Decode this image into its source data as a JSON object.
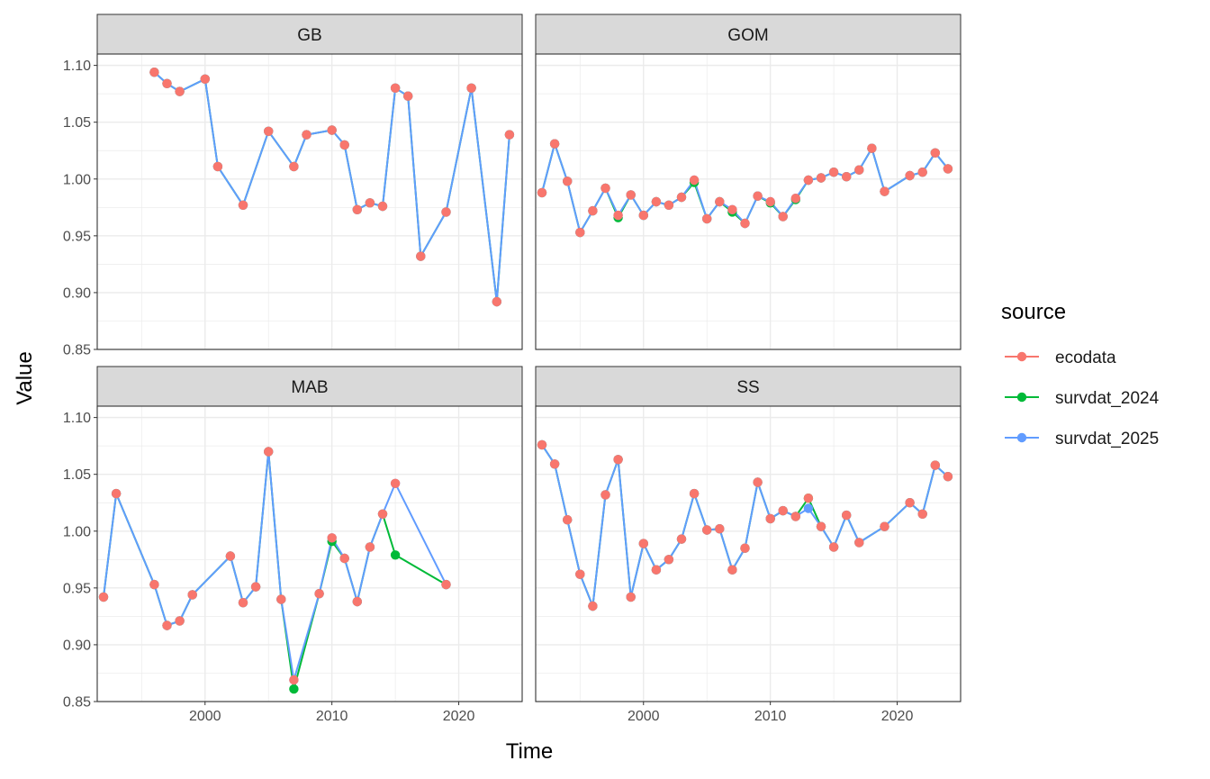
{
  "chart_data": {
    "type": "line",
    "facets": [
      "GB",
      "GOM",
      "MAB",
      "SS"
    ],
    "xlabel": "Time",
    "ylabel": "Value",
    "x_ticks": [
      2000,
      2010,
      2020
    ],
    "y_ticks": [
      0.85,
      0.9,
      0.95,
      1.0,
      1.05,
      1.1
    ],
    "y_tick_labels": [
      "0.85",
      "0.90",
      "0.95",
      "1.00",
      "1.05",
      "1.10"
    ],
    "xlim": [
      1991.5,
      2025
    ],
    "ylim": [
      0.85,
      1.11
    ],
    "grid": true,
    "legend": {
      "title": "source",
      "placement": "right",
      "entries": [
        {
          "name": "ecodata",
          "color": "#F8766D"
        },
        {
          "name": "survdat_2024",
          "color": "#00BA38"
        },
        {
          "name": "survdat_2025",
          "color": "#619CFF"
        }
      ]
    },
    "panels": [
      {
        "facet": "GB",
        "series": [
          {
            "name": "survdat_2024",
            "x": [
              1996,
              1997,
              1998,
              2000,
              2001,
              2003,
              2005,
              2007,
              2008,
              2010,
              2011,
              2012,
              2013,
              2014,
              2015,
              2016,
              2017,
              2019,
              2021,
              2023,
              2024
            ],
            "y": [
              1.094,
              1.084,
              1.077,
              1.088,
              1.011,
              0.977,
              1.042,
              1.011,
              1.039,
              1.043,
              1.03,
              0.973,
              0.979,
              0.976,
              1.08,
              1.073,
              0.932,
              0.971,
              1.08,
              0.892,
              1.039
            ]
          },
          {
            "name": "survdat_2025",
            "x": [
              1996,
              1997,
              1998,
              2000,
              2001,
              2003,
              2005,
              2007,
              2008,
              2010,
              2011,
              2012,
              2013,
              2014,
              2015,
              2016,
              2017,
              2019,
              2021,
              2023,
              2024
            ],
            "y": [
              1.094,
              1.084,
              1.077,
              1.088,
              1.011,
              0.977,
              1.042,
              1.011,
              1.039,
              1.043,
              1.03,
              0.973,
              0.979,
              0.976,
              1.08,
              1.073,
              0.932,
              0.971,
              1.08,
              0.892,
              1.039
            ]
          },
          {
            "name": "ecodata",
            "x": [
              1996,
              1997,
              1998,
              2000,
              2001,
              2003,
              2005,
              2007,
              2008,
              2010,
              2011,
              2012,
              2013,
              2014,
              2015,
              2016,
              2017,
              2019,
              2021,
              2023,
              2024
            ],
            "y": [
              1.094,
              1.084,
              1.077,
              1.088,
              1.011,
              0.977,
              1.042,
              1.011,
              1.039,
              1.043,
              1.03,
              0.973,
              0.979,
              0.976,
              1.08,
              1.073,
              0.932,
              0.971,
              1.08,
              0.892,
              1.039
            ]
          }
        ]
      },
      {
        "facet": "GOM",
        "series": [
          {
            "name": "survdat_2024",
            "x": [
              1992,
              1993,
              1994,
              1995,
              1996,
              1997,
              1998,
              1999,
              2000,
              2001,
              2002,
              2003,
              2004,
              2005,
              2006,
              2007,
              2008,
              2009,
              2010,
              2011,
              2012,
              2013,
              2014,
              2015,
              2016,
              2017,
              2018,
              2019,
              2021,
              2022,
              2023,
              2024
            ],
            "y": [
              0.988,
              1.031,
              0.998,
              0.953,
              0.972,
              0.992,
              0.966,
              0.986,
              0.968,
              0.98,
              0.977,
              0.984,
              0.997,
              0.965,
              0.98,
              0.971,
              0.961,
              0.985,
              0.979,
              0.967,
              0.982,
              0.999,
              1.001,
              1.006,
              1.002,
              1.008,
              1.027,
              0.989,
              1.003,
              1.006,
              1.023,
              1.009
            ]
          },
          {
            "name": "survdat_2025",
            "x": [
              1992,
              1993,
              1994,
              1995,
              1996,
              1997,
              1998,
              1999,
              2000,
              2001,
              2002,
              2003,
              2004,
              2005,
              2006,
              2007,
              2008,
              2009,
              2010,
              2011,
              2012,
              2013,
              2014,
              2015,
              2016,
              2017,
              2018,
              2019,
              2021,
              2022,
              2023,
              2024
            ],
            "y": [
              0.988,
              1.031,
              0.998,
              0.953,
              0.972,
              0.992,
              0.968,
              0.986,
              0.968,
              0.98,
              0.977,
              0.984,
              0.999,
              0.965,
              0.98,
              0.973,
              0.961,
              0.985,
              0.98,
              0.967,
              0.983,
              0.999,
              1.001,
              1.006,
              1.002,
              1.008,
              1.027,
              0.989,
              1.003,
              1.006,
              1.023,
              1.009
            ]
          },
          {
            "name": "ecodata",
            "x": [
              1992,
              1993,
              1994,
              1995,
              1996,
              1997,
              1998,
              1999,
              2000,
              2001,
              2002,
              2003,
              2004,
              2005,
              2006,
              2007,
              2008,
              2009,
              2010,
              2011,
              2012,
              2013,
              2014,
              2015,
              2016,
              2017,
              2018,
              2019,
              2021,
              2022,
              2023,
              2024
            ],
            "y": [
              0.988,
              1.031,
              0.998,
              0.953,
              0.972,
              0.992,
              0.968,
              0.986,
              0.968,
              0.98,
              0.977,
              0.984,
              0.999,
              0.965,
              0.98,
              0.973,
              0.961,
              0.985,
              0.98,
              0.967,
              0.983,
              0.999,
              1.001,
              1.006,
              1.002,
              1.008,
              1.027,
              0.989,
              1.003,
              1.006,
              1.023,
              1.009
            ]
          }
        ]
      },
      {
        "facet": "MAB",
        "series": [
          {
            "name": "survdat_2024",
            "x": [
              1992,
              1993,
              1996,
              1997,
              1998,
              1999,
              2002,
              2003,
              2004,
              2005,
              2006,
              2007,
              2009,
              2010,
              2011,
              2012,
              2013,
              2014,
              2015,
              2019
            ],
            "y": [
              0.942,
              1.033,
              0.953,
              0.917,
              0.921,
              0.944,
              0.978,
              0.937,
              0.951,
              1.07,
              0.94,
              0.861,
              0.945,
              0.991,
              0.976,
              0.938,
              0.986,
              1.015,
              0.979,
              0.953
            ]
          },
          {
            "name": "survdat_2025",
            "x": [
              1992,
              1993,
              1996,
              1997,
              1998,
              1999,
              2002,
              2003,
              2004,
              2005,
              2006,
              2007,
              2009,
              2010,
              2011,
              2012,
              2013,
              2014,
              2015,
              2019
            ],
            "y": [
              0.942,
              1.033,
              0.953,
              0.917,
              0.921,
              0.944,
              0.978,
              0.937,
              0.951,
              1.07,
              0.94,
              0.869,
              0.945,
              0.994,
              0.976,
              0.938,
              0.986,
              1.015,
              1.042,
              0.953
            ]
          },
          {
            "name": "ecodata",
            "x": [
              1992,
              1993,
              1996,
              1997,
              1998,
              1999,
              2002,
              2003,
              2004,
              2005,
              2006,
              2007,
              2009,
              2010,
              2011,
              2012,
              2013,
              2014,
              2015,
              2019
            ],
            "y": [
              0.942,
              1.033,
              0.953,
              0.917,
              0.921,
              0.944,
              0.978,
              0.937,
              0.951,
              1.07,
              0.94,
              0.869,
              0.945,
              0.994,
              0.976,
              0.938,
              0.986,
              1.015,
              1.042,
              0.953
            ]
          }
        ]
      },
      {
        "facet": "SS",
        "series": [
          {
            "name": "survdat_2024",
            "x": [
              1992,
              1993,
              1994,
              1995,
              1996,
              1997,
              1998,
              1999,
              2000,
              2001,
              2002,
              2003,
              2004,
              2005,
              2006,
              2007,
              2008,
              2009,
              2010,
              2011,
              2012,
              2013,
              2014,
              2015,
              2016,
              2017,
              2019,
              2021,
              2022,
              2023,
              2024
            ],
            "y": [
              1.076,
              1.059,
              1.01,
              0.962,
              0.934,
              1.032,
              1.063,
              0.942,
              0.989,
              0.966,
              0.975,
              0.993,
              1.033,
              1.001,
              1.002,
              0.966,
              0.985,
              1.043,
              1.011,
              1.018,
              1.013,
              1.029,
              1.004,
              0.986,
              1.014,
              0.99,
              1.004,
              1.025,
              1.015,
              1.058,
              1.048
            ]
          },
          {
            "name": "survdat_2025",
            "x": [
              1992,
              1993,
              1994,
              1995,
              1996,
              1997,
              1998,
              1999,
              2000,
              2001,
              2002,
              2003,
              2004,
              2005,
              2006,
              2007,
              2008,
              2009,
              2010,
              2011,
              2012,
              2013,
              2014,
              2015,
              2016,
              2017,
              2019,
              2021,
              2022,
              2023,
              2024
            ],
            "y": [
              1.076,
              1.059,
              1.01,
              0.962,
              0.934,
              1.032,
              1.063,
              0.942,
              0.989,
              0.966,
              0.975,
              0.993,
              1.033,
              1.001,
              1.002,
              0.966,
              0.985,
              1.043,
              1.011,
              1.018,
              1.013,
              1.02,
              1.004,
              0.986,
              1.014,
              0.99,
              1.004,
              1.025,
              1.015,
              1.058,
              1.048
            ]
          },
          {
            "name": "ecodata",
            "x": [
              1992,
              1993,
              1994,
              1995,
              1996,
              1997,
              1998,
              1999,
              2000,
              2001,
              2002,
              2003,
              2004,
              2005,
              2006,
              2007,
              2008,
              2009,
              2010,
              2011,
              2012,
              2013,
              2014,
              2015,
              2016,
              2017,
              2019,
              2021,
              2022,
              2023,
              2024
            ],
            "y": [
              1.076,
              1.059,
              1.01,
              0.962,
              0.934,
              1.032,
              1.063,
              0.942,
              0.989,
              0.966,
              0.975,
              0.993,
              1.033,
              1.001,
              1.002,
              0.966,
              0.985,
              1.043,
              1.011,
              1.018,
              1.013,
              1.029,
              1.004,
              0.986,
              1.014,
              0.99,
              1.004,
              1.025,
              1.015,
              1.058,
              1.048
            ]
          }
        ]
      }
    ]
  }
}
